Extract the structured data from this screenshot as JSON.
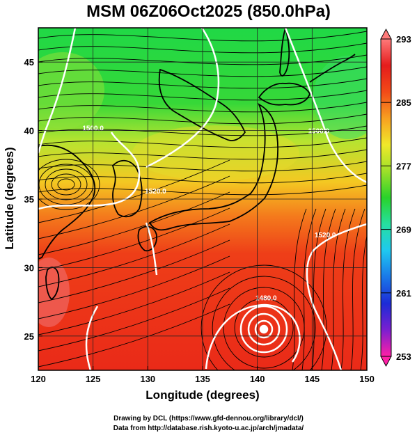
{
  "title": "MSM 06Z06Oct2025 (850.0hPa)",
  "xlabel": "Longitude (degrees)",
  "ylabel": "Latitude  (degrees)",
  "credit_line1": "Drawing by DCL (https://www.gfd-dennou.org/library/dcl/)",
  "credit_line2": "Data from http://database.rish.kyoto-u.ac.jp/arch/jmadata/",
  "map": {
    "lon_range": [
      120,
      150
    ],
    "lat_range": [
      22.5,
      47.5
    ],
    "x_ticks": [
      120,
      125,
      130,
      135,
      140,
      145,
      150
    ],
    "y_ticks": [
      25,
      30,
      35,
      40,
      45
    ],
    "gridlines": true,
    "field": "temperature (K)",
    "colorbar": {
      "min": 253,
      "max": 293,
      "labels": [
        293,
        285,
        277,
        269,
        261,
        253
      ],
      "colors": [
        "#ff1fa6",
        "#7b1fd0",
        "#1c2bd6",
        "#1a78e8",
        "#1fc8f0",
        "#26e0a0",
        "#29d22a",
        "#9ee02a",
        "#f0e82a",
        "#f8a020",
        "#f24a18",
        "#e41c1c",
        "#ff7a7a"
      ]
    },
    "contours": [
      {
        "label": "1500.0",
        "lon": 125.0,
        "lat": 40.0
      },
      {
        "label": "1500.0",
        "lon": 145.6,
        "lat": 39.8
      },
      {
        "label": "1520.0",
        "lon": 130.7,
        "lat": 35.4
      },
      {
        "label": "1520.0",
        "lon": 146.2,
        "lat": 32.2
      },
      {
        "label": "1480.0",
        "lon": 140.8,
        "lat": 27.6
      }
    ],
    "typhoon_center": {
      "lon": 140.6,
      "lat": 25.6
    }
  }
}
